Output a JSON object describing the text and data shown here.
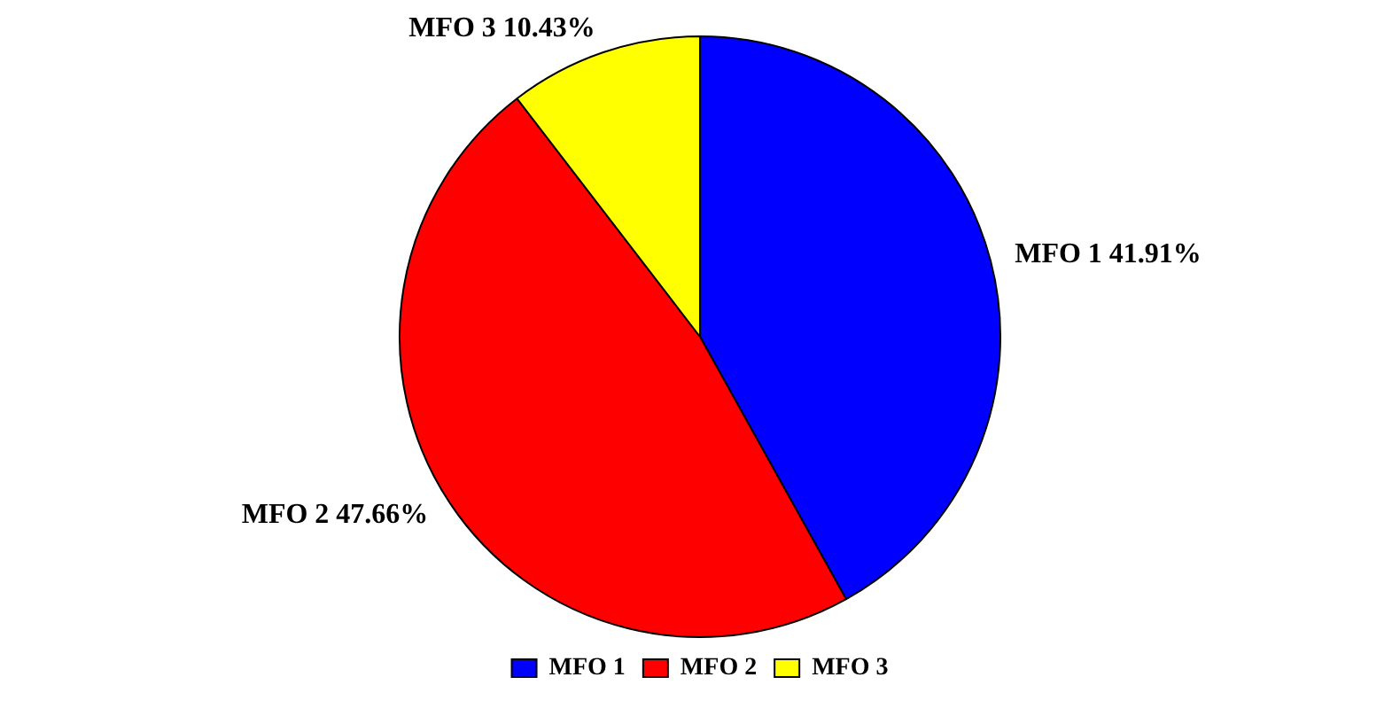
{
  "chart_data": {
    "type": "pie",
    "categories": [
      "MFO 1",
      "MFO 2",
      "MFO 3"
    ],
    "values": [
      41.91,
      47.66,
      10.43
    ],
    "colors": [
      "#0000ff",
      "#ff0000",
      "#ffff00"
    ],
    "value_labels": [
      "41.91%",
      "47.66%",
      "10.43%"
    ],
    "legend": "bottom"
  }
}
